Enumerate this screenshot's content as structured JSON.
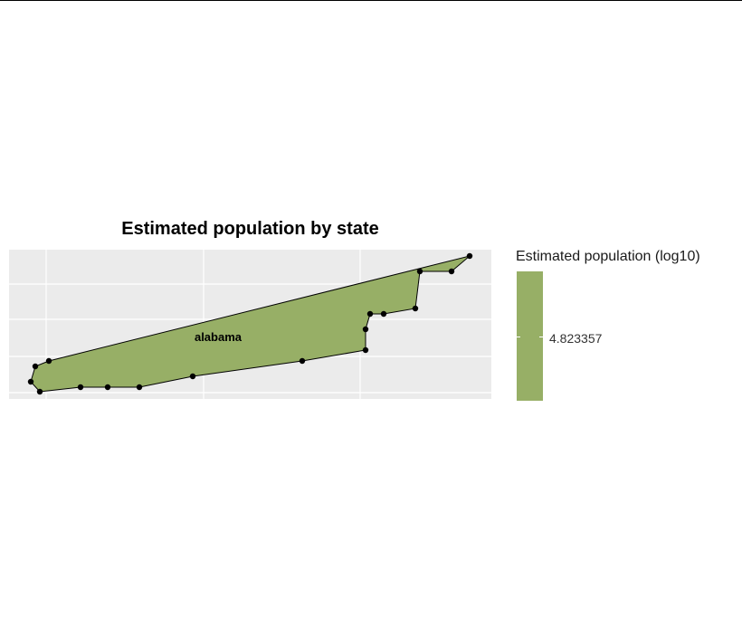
{
  "chart_data": {
    "type": "choropleth",
    "title": "Estimated population by state",
    "xlabel": "",
    "ylabel": "",
    "grid": true,
    "legend_position": "right",
    "regions": [
      {
        "name": "alabama",
        "value": 4.823357,
        "fill_color": "#97af66"
      }
    ],
    "legend": {
      "title": "Estimated population (log10)",
      "tick_labels": [
        "4.823357"
      ],
      "fill_color": "#97af66"
    },
    "colors": {
      "panel": "#ebebeb",
      "grid": "#ffffff",
      "outline": "#000000",
      "point": "#000000"
    }
  }
}
